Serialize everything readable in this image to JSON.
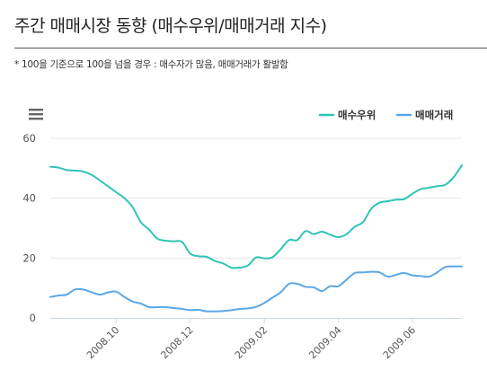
{
  "title": "주간 매매시장 동향 (매수우위/매매거래 지수)",
  "note": "* 100을 기준으로 100을 넘을 경우 : 매수자가 많음, 매매거래가 활발함",
  "menu_icon": "hamburger-menu-icon",
  "colors": {
    "series1": "#2ec4b6",
    "series2": "#5aa7e8",
    "grid": "#e6e6e6",
    "axis": "#cfd8e3",
    "text": "#555555"
  },
  "chart_data": {
    "type": "line",
    "ylim": [
      0,
      60
    ],
    "yticks": [
      0,
      20,
      40,
      60
    ],
    "x_count": 51,
    "xticks": [
      {
        "index": 8,
        "label": "2008.10"
      },
      {
        "index": 17,
        "label": "2008.12"
      },
      {
        "index": 26,
        "label": "2009.02"
      },
      {
        "index": 35,
        "label": "2009.04"
      },
      {
        "index": 44,
        "label": "2009.06"
      }
    ],
    "grid": true,
    "legend_position": "top-right",
    "series": [
      {
        "name": "매수우위",
        "color": "#2ec4b6",
        "values": [
          50.5,
          50.2,
          49.4,
          49.2,
          48.9,
          47.8,
          46.0,
          44.0,
          42.0,
          40.0,
          37.0,
          32.0,
          29.5,
          26.5,
          25.8,
          25.6,
          25.4,
          21.5,
          20.6,
          20.4,
          19.0,
          18.2,
          16.8,
          16.8,
          17.5,
          20.2,
          19.9,
          20.3,
          23.0,
          26.0,
          26.0,
          29.0,
          28.0,
          28.8,
          27.8,
          27.0,
          28.0,
          30.5,
          32.0,
          36.5,
          38.5,
          39.0,
          39.5,
          39.7,
          41.5,
          43.0,
          43.5,
          44.0,
          44.5,
          47.0,
          51.0
        ]
      },
      {
        "name": "매매거래",
        "color": "#5aa7e8",
        "values": [
          7.0,
          7.5,
          7.8,
          9.5,
          9.5,
          8.6,
          7.8,
          8.5,
          8.8,
          7.0,
          5.5,
          4.8,
          3.6,
          3.6,
          3.6,
          3.3,
          3.0,
          2.6,
          2.7,
          2.2,
          2.2,
          2.3,
          2.6,
          3.0,
          3.2,
          3.7,
          5.0,
          6.8,
          8.6,
          11.4,
          11.4,
          10.4,
          10.2,
          9.0,
          10.6,
          10.6,
          12.8,
          15.0,
          15.2,
          15.4,
          15.2,
          13.8,
          14.4,
          15.0,
          14.2,
          14.0,
          13.8,
          15.2,
          17.0,
          17.2,
          17.2
        ]
      }
    ]
  }
}
